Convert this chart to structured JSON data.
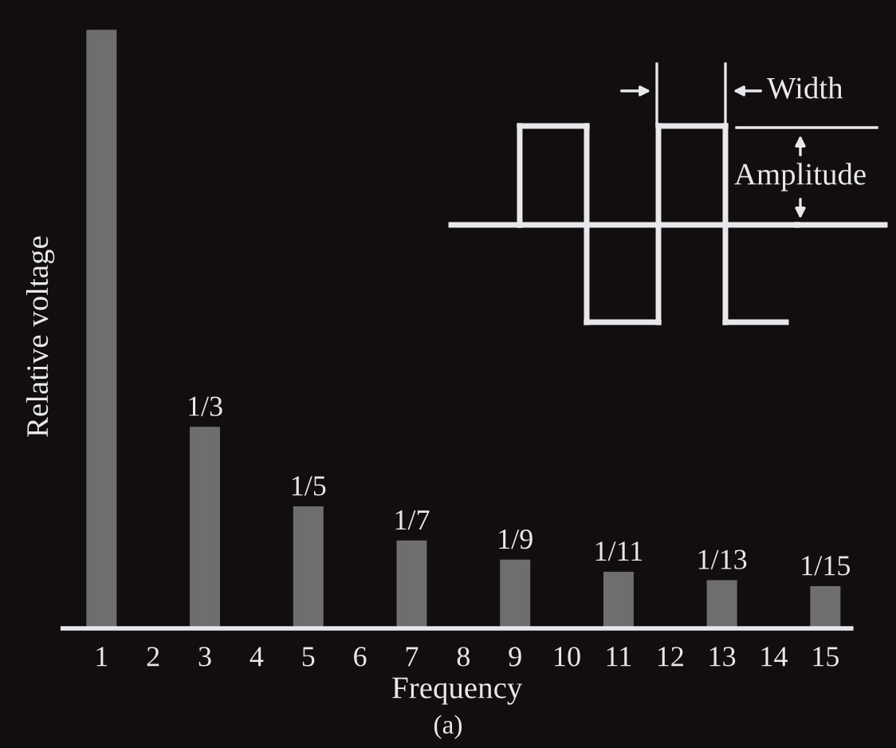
{
  "chart_data": {
    "type": "bar",
    "ylim": [
      0,
      1
    ],
    "tick_labels": "x",
    "xlabel": "Frequency",
    "ylabel": "Relative voltage",
    "categories": [
      "1",
      "2",
      "3",
      "4",
      "5",
      "6",
      "7",
      "8",
      "9",
      "10",
      "11",
      "12",
      "13",
      "14",
      "15"
    ],
    "values": [
      1,
      null,
      0.333,
      null,
      0.2,
      null,
      0.143,
      null,
      0.111,
      null,
      0.0909,
      null,
      0.0769,
      null,
      0.0667
    ],
    "value_labels": [
      null,
      null,
      "1/3",
      null,
      "1/5",
      null,
      "1/7",
      null,
      "1/9",
      null,
      "1/11",
      null,
      "1/13",
      null,
      "1/15"
    ],
    "color": "#6e6e70",
    "annotations": [
      "Width",
      "Amplitude",
      "(a)"
    ],
    "grid": false,
    "legend": false
  }
}
